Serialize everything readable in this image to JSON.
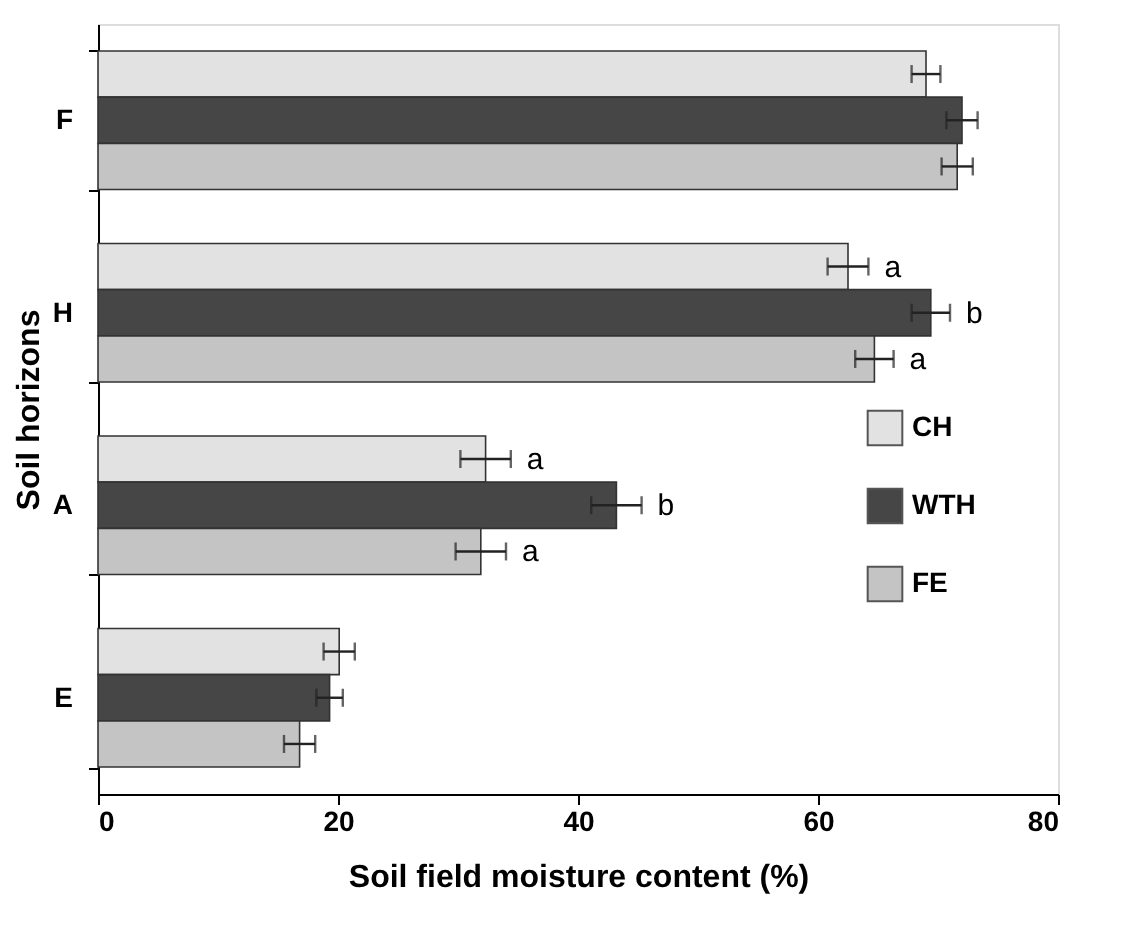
{
  "chart_data": {
    "type": "bar",
    "orientation": "horizontal",
    "xlabel": "Soil field moisture content (%)",
    "ylabel": "Soil horizons",
    "categories": [
      "F",
      "H",
      "A",
      "E"
    ],
    "series": [
      {
        "name": "CH",
        "color": "#e2e2e2",
        "values": [
          69.0,
          62.5,
          32.3,
          20.1
        ],
        "errors": [
          1.2,
          1.7,
          2.1,
          1.3
        ],
        "value_labels": [
          null,
          "a",
          "a",
          null
        ]
      },
      {
        "name": "WTH",
        "color": "#464646",
        "values": [
          72.0,
          69.4,
          43.2,
          19.3
        ],
        "errors": [
          1.3,
          1.6,
          2.1,
          1.1
        ],
        "value_labels": [
          null,
          "b",
          "b",
          null
        ]
      },
      {
        "name": "FE",
        "color": "#c4c4c4",
        "values": [
          71.6,
          64.7,
          31.9,
          16.8
        ],
        "errors": [
          1.3,
          1.6,
          2.1,
          1.3
        ],
        "value_labels": [
          null,
          "a",
          "a",
          null
        ]
      }
    ],
    "xlim": [
      0,
      80
    ],
    "xticks": [
      0,
      20,
      40,
      60,
      80
    ],
    "grid": false,
    "legend": "right"
  }
}
